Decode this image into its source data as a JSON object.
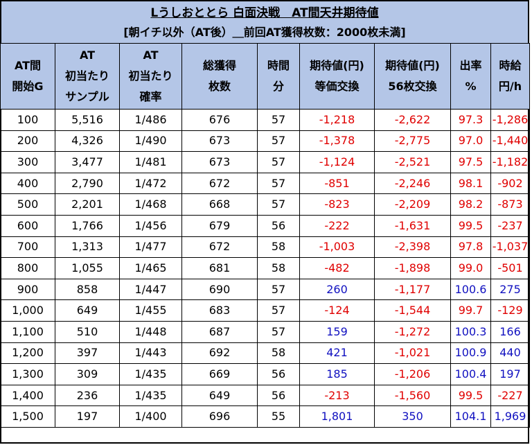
{
  "title": "Lうしおととら 白面決戦　AT間天井期待値",
  "subtitle": "[朝イチ以外（AT後）＿前回AT獲得枚数：2000枚未満]",
  "headers": [
    [
      "AT間",
      "開始G"
    ],
    [
      "AT",
      "初当たり",
      "サンプル"
    ],
    [
      "AT",
      "初当たり",
      "確率"
    ],
    [
      "総獲得",
      "枚数"
    ],
    [
      "時間",
      "分"
    ],
    [
      "期待値(円)",
      "等価交換"
    ],
    [
      "期待値(円)",
      "56枚交換"
    ],
    [
      "出率",
      "%"
    ],
    [
      "時給",
      "円/h"
    ]
  ],
  "rows": [
    [
      "100",
      "5,516",
      "1/486",
      "676",
      "57",
      "-1,218",
      "-2,622",
      "97.3",
      "-1,286"
    ],
    [
      "200",
      "4,326",
      "1/490",
      "673",
      "57",
      "-1,378",
      "-2,775",
      "97.0",
      "-1,440"
    ],
    [
      "300",
      "3,477",
      "1/481",
      "673",
      "57",
      "-1,124",
      "-2,521",
      "97.5",
      "-1,182"
    ],
    [
      "400",
      "2,790",
      "1/472",
      "672",
      "57",
      "-851",
      "-2,246",
      "98.1",
      "-902"
    ],
    [
      "500",
      "2,201",
      "1/468",
      "668",
      "57",
      "-823",
      "-2,209",
      "98.2",
      "-873"
    ],
    [
      "600",
      "1,766",
      "1/456",
      "679",
      "56",
      "-222",
      "-1,631",
      "99.5",
      "-237"
    ],
    [
      "700",
      "1,313",
      "1/477",
      "672",
      "58",
      "-1,003",
      "-2,398",
      "97.8",
      "-1,037"
    ],
    [
      "800",
      "1,055",
      "1/465",
      "681",
      "58",
      "-482",
      "-1,898",
      "99.0",
      "-501"
    ],
    [
      "900",
      "858",
      "1/447",
      "690",
      "57",
      "260",
      "-1,177",
      "100.6",
      "275"
    ],
    [
      "1,000",
      "649",
      "1/455",
      "683",
      "57",
      "-124",
      "-1,544",
      "99.7",
      "-129"
    ],
    [
      "1,100",
      "510",
      "1/448",
      "687",
      "57",
      "159",
      "-1,272",
      "100.3",
      "166"
    ],
    [
      "1,200",
      "397",
      "1/443",
      "692",
      "58",
      "421",
      "-1,021",
      "100.9",
      "440"
    ],
    [
      "1,300",
      "309",
      "1/435",
      "669",
      "56",
      "185",
      "-1,206",
      "100.4",
      "197"
    ],
    [
      "1,400",
      "236",
      "1/435",
      "649",
      "56",
      "-213",
      "-1,560",
      "99.5",
      "-227"
    ],
    [
      "1,500",
      "197",
      "1/400",
      "696",
      "55",
      "1,801",
      "350",
      "104.1",
      "1,969"
    ]
  ],
  "colors": {
    "header_bg": "#b4c6e7",
    "negative": "#e00000",
    "positive": "#1010c0"
  }
}
